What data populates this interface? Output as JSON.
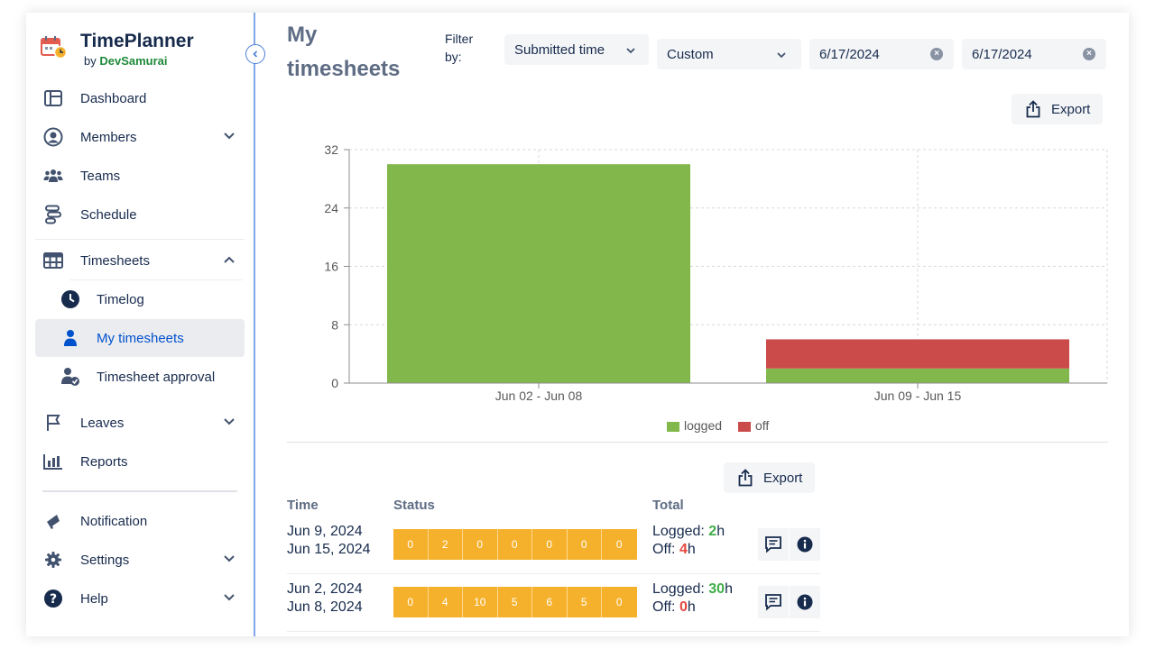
{
  "brand": {
    "name": "TimePlanner",
    "by": "by",
    "company": "DevSamurai"
  },
  "nav": {
    "dashboard": "Dashboard",
    "members": "Members",
    "teams": "Teams",
    "schedule": "Schedule",
    "timesheets": "Timesheets",
    "timelog": "Timelog",
    "my_timesheets": "My timesheets",
    "timesheet_approval": "Timesheet approval",
    "leaves": "Leaves",
    "reports": "Reports",
    "notification": "Notification",
    "settings": "Settings",
    "help": "Help"
  },
  "page": {
    "title": "My timesheets",
    "filter_label": "Filter by:",
    "filter_type": "Submitted time",
    "range": "Custom",
    "date_from": "6/17/2024",
    "date_to": "6/17/2024",
    "export_label": "Export"
  },
  "colors": {
    "logged": "#82b74b",
    "off": "#cb4b4b",
    "status_cell": "#f6b12c",
    "accent": "#0052cc"
  },
  "chart_data": {
    "type": "bar",
    "stacked": true,
    "categories": [
      "Jun 02 - Jun 08",
      "Jun 09 - Jun 15"
    ],
    "series": [
      {
        "name": "logged",
        "values": [
          30,
          2
        ]
      },
      {
        "name": "off",
        "values": [
          0,
          4
        ]
      }
    ],
    "ylim": [
      0,
      32
    ],
    "yticks": [
      0,
      8,
      16,
      24,
      32
    ],
    "grid": true,
    "legend": "bottom"
  },
  "table": {
    "headers": {
      "time": "Time",
      "status": "Status",
      "total": "Total"
    },
    "export_label": "Export",
    "logged_label": "Logged:",
    "off_label": "Off:",
    "hour_suffix": "h",
    "rows": [
      {
        "start": "Jun 9, 2024",
        "end": "Jun 15, 2024",
        "status": [
          "0",
          "2",
          "0",
          "0",
          "0",
          "0",
          "0"
        ],
        "logged": "2",
        "off": "4"
      },
      {
        "start": "Jun 2, 2024",
        "end": "Jun 8, 2024",
        "status": [
          "0",
          "4",
          "10",
          "5",
          "6",
          "5",
          "0"
        ],
        "logged": "30",
        "off": "0"
      }
    ]
  }
}
